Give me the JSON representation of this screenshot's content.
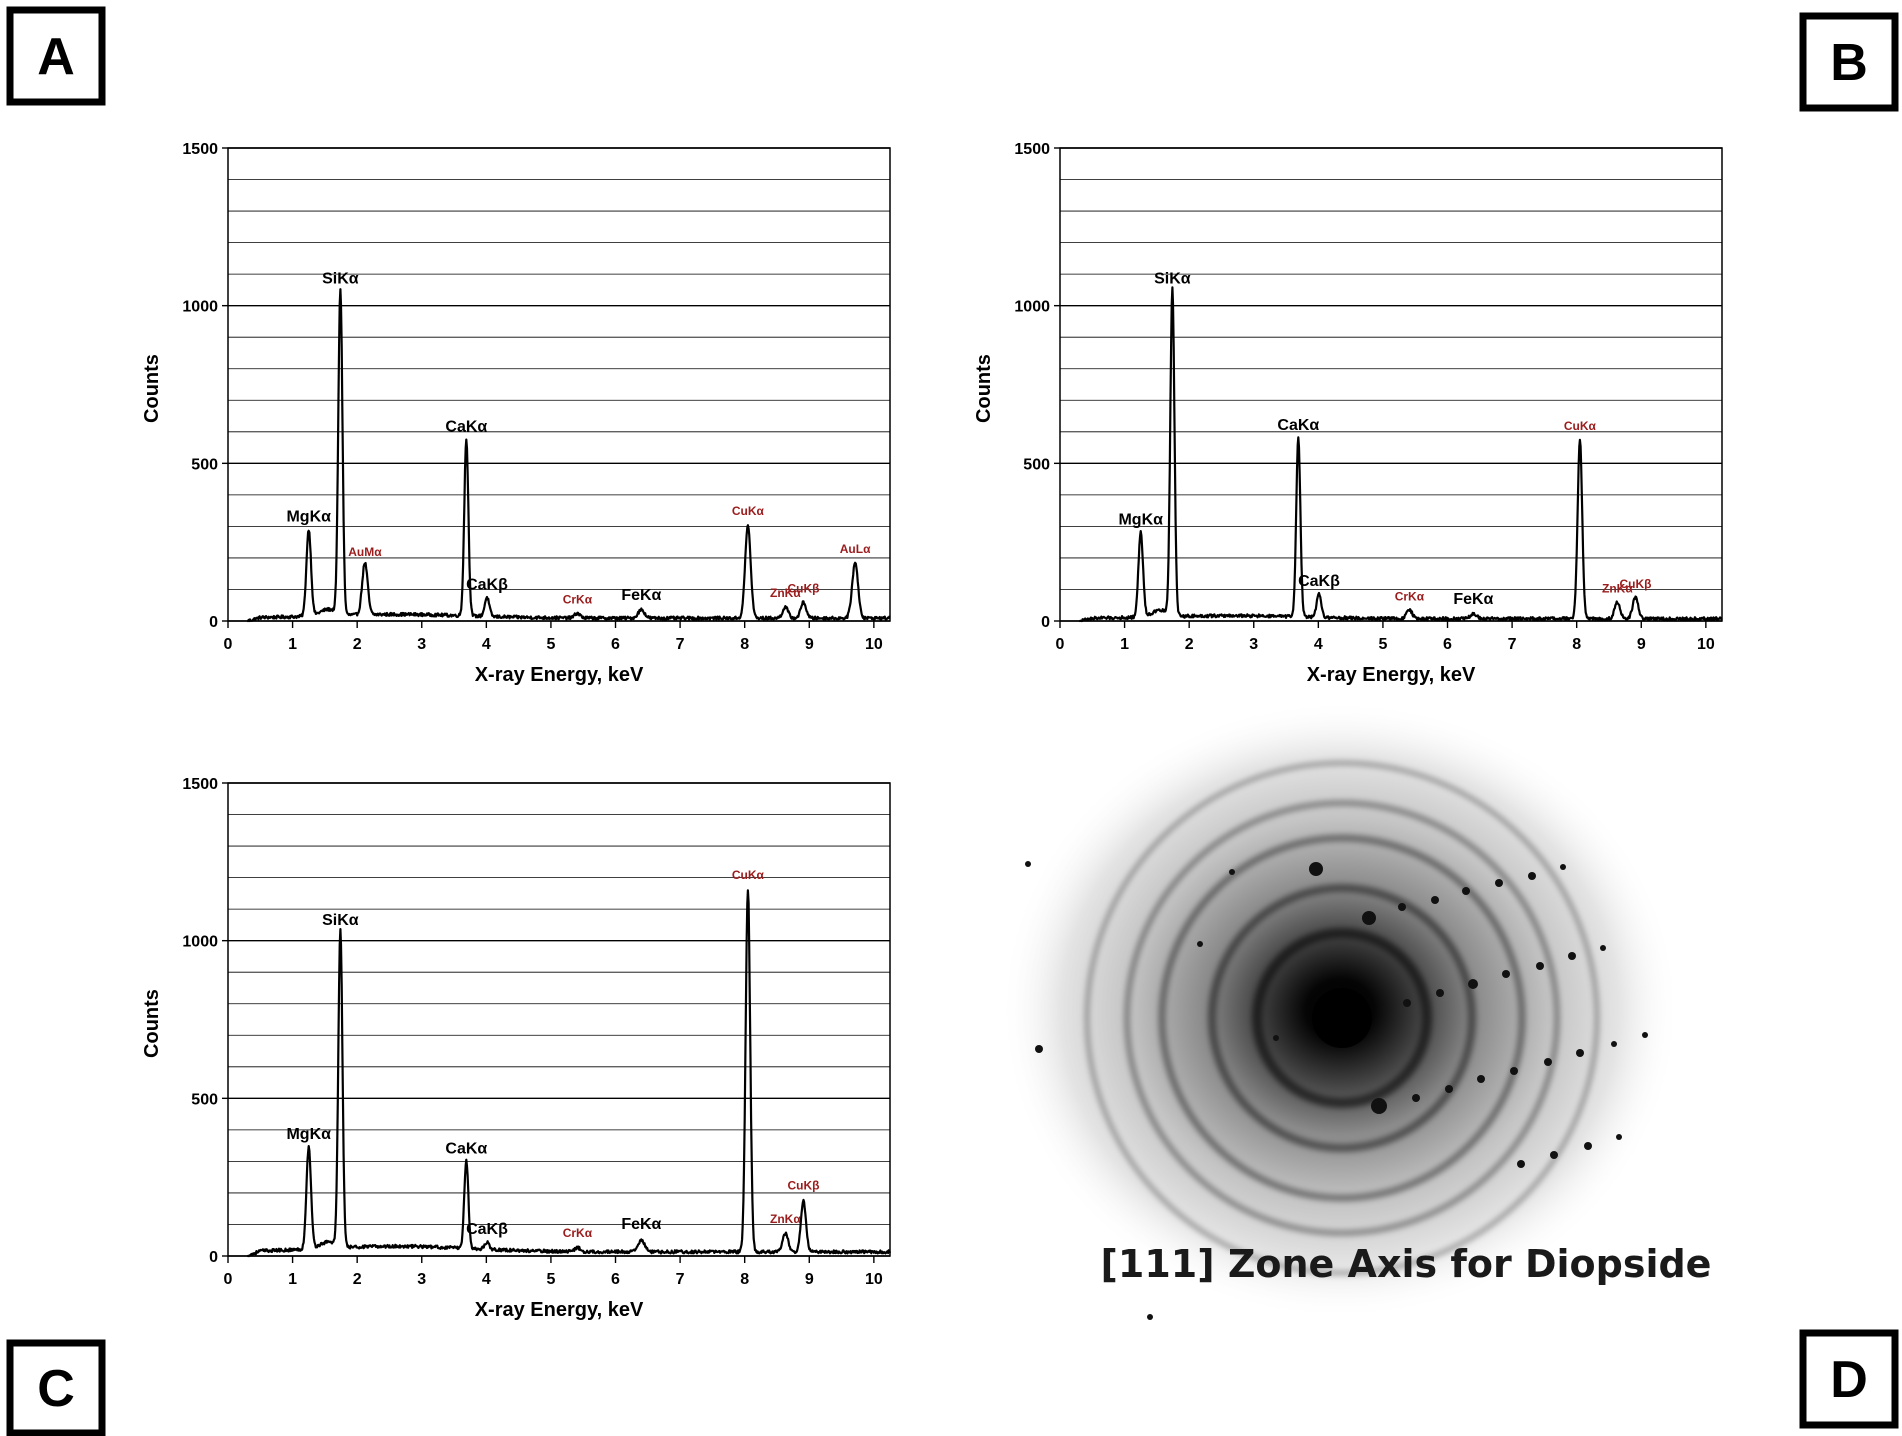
{
  "panel_labels": [
    "A",
    "B",
    "C",
    "D"
  ],
  "chart_data": [
    {
      "panel": "A",
      "type": "line",
      "title": "",
      "xlabel": "X-ray Energy, keV",
      "ylabel": "Counts",
      "xlim": [
        0,
        10.25
      ],
      "ylim": [
        0,
        1500
      ],
      "xticks": [
        0,
        1,
        2,
        3,
        4,
        5,
        6,
        7,
        8,
        9,
        10
      ],
      "yticks": [
        0,
        500,
        1000,
        1500
      ],
      "ygrid_step": 100,
      "grid": true,
      "baseline": 15,
      "peaks": [
        {
          "label": "MgKα",
          "x": 1.25,
          "y": 290,
          "w": 0.05,
          "class": "major"
        },
        {
          "label": "SiKα",
          "x": 1.74,
          "y": 1045,
          "w": 0.045,
          "class": "major"
        },
        {
          "label": "AuMα",
          "x": 2.12,
          "y": 180,
          "w": 0.06,
          "class": "minor"
        },
        {
          "label": "CaKα",
          "x": 3.69,
          "y": 575,
          "w": 0.045,
          "class": "major"
        },
        {
          "label": "CaKβ",
          "x": 4.01,
          "y": 75,
          "w": 0.05,
          "class": "major"
        },
        {
          "label": "CrKα",
          "x": 5.41,
          "y": 30,
          "w": 0.06,
          "class": "minor"
        },
        {
          "label": "FeKα",
          "x": 6.4,
          "y": 42,
          "w": 0.07,
          "class": "major"
        },
        {
          "label": "CuKα",
          "x": 8.05,
          "y": 310,
          "w": 0.06,
          "class": "minor"
        },
        {
          "label": "ZnKα",
          "x": 8.63,
          "y": 50,
          "w": 0.06,
          "class": "minor"
        },
        {
          "label": "CuKβ",
          "x": 8.91,
          "y": 65,
          "w": 0.06,
          "class": "minor"
        },
        {
          "label": "AuLα",
          "x": 9.71,
          "y": 190,
          "w": 0.065,
          "class": "minor"
        }
      ]
    },
    {
      "panel": "B",
      "type": "line",
      "title": "",
      "xlabel": "X-ray Energy, keV",
      "ylabel": "Counts",
      "xlim": [
        0,
        10.25
      ],
      "ylim": [
        0,
        1500
      ],
      "xticks": [
        0,
        1,
        2,
        3,
        4,
        5,
        6,
        7,
        8,
        9,
        10
      ],
      "yticks": [
        0,
        500,
        1000,
        1500
      ],
      "ygrid_step": 100,
      "grid": true,
      "baseline": 12,
      "peaks": [
        {
          "label": "MgKα",
          "x": 1.25,
          "y": 280,
          "w": 0.05,
          "class": "major"
        },
        {
          "label": "SiKα",
          "x": 1.74,
          "y": 1045,
          "w": 0.045,
          "class": "major"
        },
        {
          "label": "CaKα",
          "x": 3.69,
          "y": 580,
          "w": 0.045,
          "class": "major"
        },
        {
          "label": "CaKβ",
          "x": 4.01,
          "y": 85,
          "w": 0.05,
          "class": "major"
        },
        {
          "label": "CrKα",
          "x": 5.41,
          "y": 40,
          "w": 0.06,
          "class": "minor"
        },
        {
          "label": "FeKα",
          "x": 6.4,
          "y": 28,
          "w": 0.07,
          "class": "major"
        },
        {
          "label": "CuKα",
          "x": 8.05,
          "y": 580,
          "w": 0.05,
          "class": "minor"
        },
        {
          "label": "ZnKα",
          "x": 8.63,
          "y": 65,
          "w": 0.06,
          "class": "minor"
        },
        {
          "label": "CuKβ",
          "x": 8.91,
          "y": 80,
          "w": 0.06,
          "class": "minor"
        }
      ]
    },
    {
      "panel": "C",
      "type": "line",
      "title": "",
      "xlabel": "X-ray Energy, keV",
      "ylabel": "Counts",
      "xlim": [
        0,
        10.25
      ],
      "ylim": [
        0,
        1500
      ],
      "xticks": [
        0,
        1,
        2,
        3,
        4,
        5,
        6,
        7,
        8,
        9,
        10
      ],
      "yticks": [
        0,
        500,
        1000,
        1500
      ],
      "ygrid_step": 100,
      "grid": true,
      "baseline": 22,
      "peaks": [
        {
          "label": "MgKα",
          "x": 1.25,
          "y": 345,
          "w": 0.05,
          "class": "major"
        },
        {
          "label": "SiKα",
          "x": 1.74,
          "y": 1025,
          "w": 0.045,
          "class": "major"
        },
        {
          "label": "CaKα",
          "x": 3.69,
          "y": 300,
          "w": 0.045,
          "class": "major"
        },
        {
          "label": "CaKβ",
          "x": 4.01,
          "y": 45,
          "w": 0.05,
          "class": "major"
        },
        {
          "label": "CrKα",
          "x": 5.41,
          "y": 35,
          "w": 0.06,
          "class": "minor"
        },
        {
          "label": "FeKα",
          "x": 6.4,
          "y": 60,
          "w": 0.07,
          "class": "major"
        },
        {
          "label": "CuKα",
          "x": 8.05,
          "y": 1170,
          "w": 0.05,
          "class": "minor"
        },
        {
          "label": "ZnKα",
          "x": 8.63,
          "y": 80,
          "w": 0.06,
          "class": "minor"
        },
        {
          "label": "CuKβ",
          "x": 8.91,
          "y": 185,
          "w": 0.055,
          "class": "minor"
        }
      ]
    }
  ],
  "diffraction_pattern": {
    "caption": "[111] Zone Axis for Diopside",
    "colors": {
      "background": "#ffffff",
      "spot": "#111111"
    }
  },
  "colors": {
    "major_label": "#000000",
    "minor_label": "#9b1c1c",
    "line": "#000000",
    "grid": "#000000"
  }
}
